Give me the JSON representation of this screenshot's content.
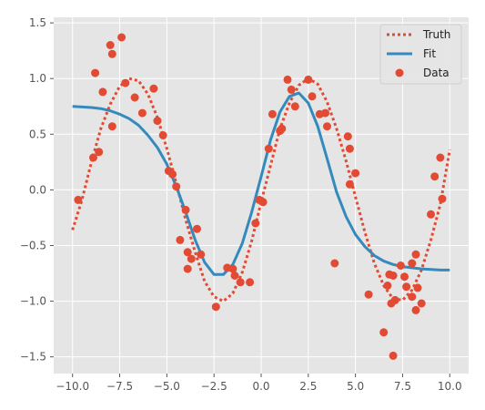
{
  "chart_data": {
    "type": "line",
    "title": "",
    "xlabel": "",
    "ylabel": "",
    "xlim": [
      -11,
      11
    ],
    "ylim": [
      -1.65,
      1.55
    ],
    "xticks": [
      -10.0,
      -7.5,
      -5.0,
      -2.5,
      0.0,
      2.5,
      5.0,
      7.5,
      10.0
    ],
    "xtick_labels": [
      "−10.0",
      "−7.5",
      "−5.0",
      "−2.5",
      "0.0",
      "2.5",
      "5.0",
      "7.5",
      "10.0"
    ],
    "yticks": [
      -1.5,
      -1.0,
      -0.5,
      0.0,
      0.5,
      1.0,
      1.5
    ],
    "ytick_labels": [
      "−1.5",
      "−1.0",
      "−0.5",
      "0.0",
      "0.5",
      "1.0",
      "1.5"
    ],
    "grid": true,
    "legend_position": "top-right",
    "series": [
      {
        "name": "Truth",
        "kind": "line",
        "style": "dotted",
        "color": "#e24a33",
        "x": [
          -10.0,
          -9.5,
          -9.0,
          -8.5,
          -8.0,
          -7.5,
          -7.0,
          -6.5,
          -6.0,
          -5.5,
          -5.0,
          -4.5,
          -4.0,
          -3.5,
          -3.0,
          -2.5,
          -2.0,
          -1.5,
          -1.0,
          -0.5,
          0.0,
          0.5,
          1.0,
          1.5,
          2.0,
          2.5,
          3.0,
          3.5,
          4.0,
          4.5,
          5.0,
          5.5,
          6.0,
          6.5,
          7.0,
          7.5,
          8.0,
          8.5,
          9.0,
          9.5,
          10.0
        ],
        "y": [
          -0.36,
          -0.09,
          0.25,
          0.55,
          0.77,
          0.93,
          1.0,
          0.98,
          0.86,
          0.65,
          0.37,
          0.06,
          -0.27,
          -0.56,
          -0.82,
          -0.96,
          -1.0,
          -0.93,
          -0.74,
          -0.46,
          -0.11,
          0.22,
          0.55,
          0.78,
          0.94,
          1.0,
          0.95,
          0.79,
          0.55,
          0.26,
          -0.06,
          -0.38,
          -0.66,
          -0.86,
          -0.98,
          -0.99,
          -0.9,
          -0.72,
          -0.45,
          -0.13,
          0.36
        ]
      },
      {
        "name": "Fit",
        "kind": "line",
        "style": "solid",
        "color": "#348abd",
        "x": [
          -10.0,
          -9.5,
          -9.0,
          -8.5,
          -8.0,
          -7.5,
          -7.0,
          -6.5,
          -6.0,
          -5.5,
          -5.0,
          -4.5,
          -4.0,
          -3.5,
          -3.0,
          -2.5,
          -2.0,
          -1.5,
          -1.0,
          -0.5,
          0.0,
          0.5,
          1.0,
          1.5,
          2.0,
          2.5,
          3.0,
          3.5,
          4.0,
          4.5,
          5.0,
          5.5,
          6.0,
          6.5,
          7.0,
          7.5,
          8.0,
          8.5,
          9.0,
          9.5,
          10.0
        ],
        "y": [
          0.75,
          0.745,
          0.74,
          0.73,
          0.71,
          0.68,
          0.64,
          0.58,
          0.49,
          0.38,
          0.23,
          0.03,
          -0.2,
          -0.45,
          -0.65,
          -0.76,
          -0.76,
          -0.67,
          -0.48,
          -0.2,
          0.12,
          0.45,
          0.7,
          0.84,
          0.87,
          0.78,
          0.57,
          0.28,
          -0.02,
          -0.24,
          -0.4,
          -0.51,
          -0.59,
          -0.64,
          -0.67,
          -0.69,
          -0.7,
          -0.71,
          -0.715,
          -0.72,
          -0.72
        ]
      },
      {
        "name": "Data",
        "kind": "scatter",
        "color": "#e24a33",
        "x": [
          -9.7,
          -8.9,
          -8.8,
          -8.6,
          -8.4,
          -8.0,
          -7.9,
          -7.9,
          -7.4,
          -7.2,
          -6.7,
          -6.3,
          -5.7,
          -5.5,
          -5.2,
          -4.9,
          -4.7,
          -4.5,
          -4.3,
          -4.0,
          -3.9,
          -3.9,
          -3.7,
          -3.4,
          -3.2,
          -2.4,
          -1.8,
          -1.5,
          -1.4,
          -1.1,
          -0.6,
          -0.3,
          -0.1,
          0.1,
          0.4,
          0.6,
          1.0,
          1.1,
          1.4,
          1.6,
          1.8,
          2.5,
          2.7,
          3.1,
          3.4,
          3.5,
          3.9,
          4.6,
          4.7,
          4.7,
          5.0,
          5.7,
          6.5,
          6.7,
          6.8,
          6.9,
          7.0,
          7.0,
          7.1,
          7.4,
          7.6,
          7.7,
          8.0,
          8.0,
          8.2,
          8.2,
          8.3,
          8.5,
          9.0,
          9.2,
          9.5,
          9.6
        ],
        "y": [
          -0.09,
          0.29,
          1.05,
          0.34,
          0.88,
          1.3,
          1.22,
          0.57,
          1.37,
          0.96,
          0.83,
          0.69,
          0.91,
          0.62,
          0.49,
          0.17,
          0.14,
          0.03,
          -0.45,
          -0.18,
          -0.56,
          -0.71,
          -0.62,
          -0.35,
          -0.58,
          -1.05,
          -0.7,
          -0.71,
          -0.77,
          -0.83,
          -0.83,
          -0.3,
          -0.09,
          -0.11,
          0.37,
          0.68,
          0.53,
          0.55,
          0.99,
          0.9,
          0.75,
          0.99,
          0.84,
          0.68,
          0.69,
          0.57,
          -0.66,
          0.48,
          0.37,
          0.05,
          0.15,
          -0.94,
          -1.28,
          -0.86,
          -0.76,
          -1.02,
          -0.77,
          -1.49,
          -0.99,
          -0.68,
          -0.78,
          -0.87,
          -0.66,
          -0.96,
          -0.58,
          -1.08,
          -0.88,
          -1.02,
          -0.22,
          0.12,
          0.29,
          -0.08
        ]
      }
    ]
  }
}
